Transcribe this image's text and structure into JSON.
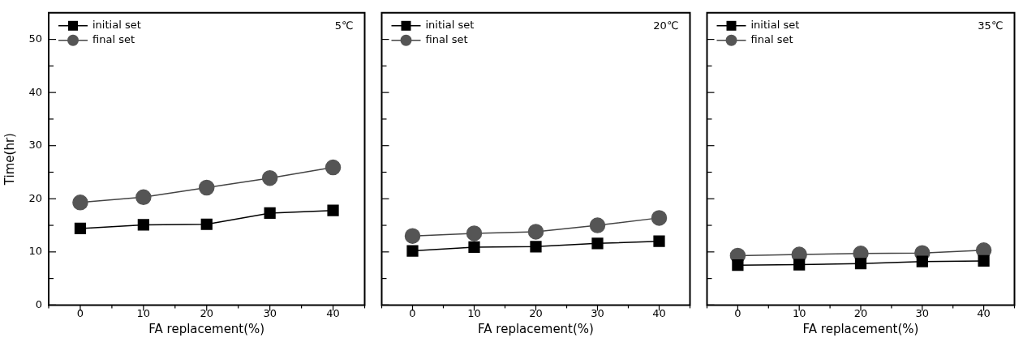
{
  "chart_data": [
    {
      "type": "line",
      "xlabel": "FA replacement(%)",
      "ylabel": "Time(hr)",
      "annotations": [
        "5℃"
      ],
      "x": [
        0,
        10,
        20,
        30,
        40
      ],
      "series": [
        {
          "name": "initial set",
          "color": "#000000",
          "marker": "square",
          "values": [
            14.4,
            15.1,
            15.2,
            17.3,
            17.8
          ]
        },
        {
          "name": "final set",
          "color": "#555555",
          "marker": "circle",
          "values": [
            19.3,
            20.3,
            22.1,
            23.9,
            25.9
          ]
        }
      ],
      "xlim": [
        -5,
        45
      ],
      "xticks": [
        {
          "value": -5,
          "label": null
        },
        0,
        {
          "value": 5,
          "label": null
        },
        10,
        {
          "value": 15,
          "label": null
        },
        20,
        {
          "value": 25,
          "label": null
        },
        30,
        {
          "value": 35,
          "label": null
        },
        40,
        {
          "value": 45,
          "label": null
        }
      ],
      "ylim": [
        0,
        55
      ],
      "yticks": [
        0,
        {
          "value": 5,
          "label": null
        },
        10,
        {
          "value": 15,
          "label": null
        },
        20,
        {
          "value": 25,
          "label": null
        },
        30,
        {
          "value": 35,
          "label": null
        },
        40,
        {
          "value": 45,
          "label": null
        },
        50
      ],
      "legend": "top left",
      "line_style": "solid"
    },
    {
      "type": "line",
      "xlabel": "FA replacement(%)",
      "annotations": [
        "20℃"
      ],
      "x": [
        0,
        10,
        20,
        30,
        40
      ],
      "series": [
        {
          "name": "initial set",
          "color": "#000000",
          "marker": "square",
          "values": [
            10.2,
            10.9,
            11.0,
            11.6,
            12.0
          ]
        },
        {
          "name": "final set",
          "color": "#555555",
          "marker": "circle",
          "values": [
            13.0,
            13.5,
            13.8,
            15.0,
            16.4
          ]
        }
      ],
      "xlim": [
        -5,
        45
      ],
      "xticks": [
        {
          "value": -5,
          "label": null
        },
        0,
        {
          "value": 5,
          "label": null
        },
        10,
        {
          "value": 15,
          "label": null
        },
        20,
        {
          "value": 25,
          "label": null
        },
        30,
        {
          "value": 35,
          "label": null
        },
        40,
        {
          "value": 45,
          "label": null
        }
      ],
      "ylim": [
        0,
        55
      ],
      "yticks": [
        0,
        {
          "value": 5,
          "label": null
        },
        10,
        {
          "value": 15,
          "label": null
        },
        20,
        {
          "value": 25,
          "label": null
        },
        30,
        {
          "value": 35,
          "label": null
        },
        40,
        {
          "value": 45,
          "label": null
        },
        50
      ],
      "tick_labels": "x",
      "legend": "top left",
      "line_style": "solid"
    },
    {
      "type": "line",
      "xlabel": "FA replacement(%)",
      "annotations": [
        "35℃"
      ],
      "x": [
        0,
        10,
        20,
        30,
        40
      ],
      "series": [
        {
          "name": "initial set",
          "color": "#000000",
          "marker": "square",
          "values": [
            7.5,
            7.6,
            7.8,
            8.2,
            8.3
          ]
        },
        {
          "name": "final set",
          "color": "#555555",
          "marker": "circle",
          "values": [
            9.3,
            9.5,
            9.7,
            9.8,
            10.3
          ]
        }
      ],
      "xlim": [
        -5,
        45
      ],
      "xticks": [
        {
          "value": -5,
          "label": null
        },
        0,
        {
          "value": 5,
          "label": null
        },
        10,
        {
          "value": 15,
          "label": null
        },
        20,
        {
          "value": 25,
          "label": null
        },
        30,
        {
          "value": 35,
          "label": null
        },
        40,
        {
          "value": 45,
          "label": null
        }
      ],
      "ylim": [
        0,
        55
      ],
      "yticks": [
        0,
        {
          "value": 5,
          "label": null
        },
        10,
        {
          "value": 15,
          "label": null
        },
        20,
        {
          "value": 25,
          "label": null
        },
        30,
        {
          "value": 35,
          "label": null
        },
        40,
        {
          "value": 45,
          "label": null
        },
        50
      ],
      "tick_labels": "x",
      "legend": "top left",
      "line_style": "solid"
    }
  ]
}
